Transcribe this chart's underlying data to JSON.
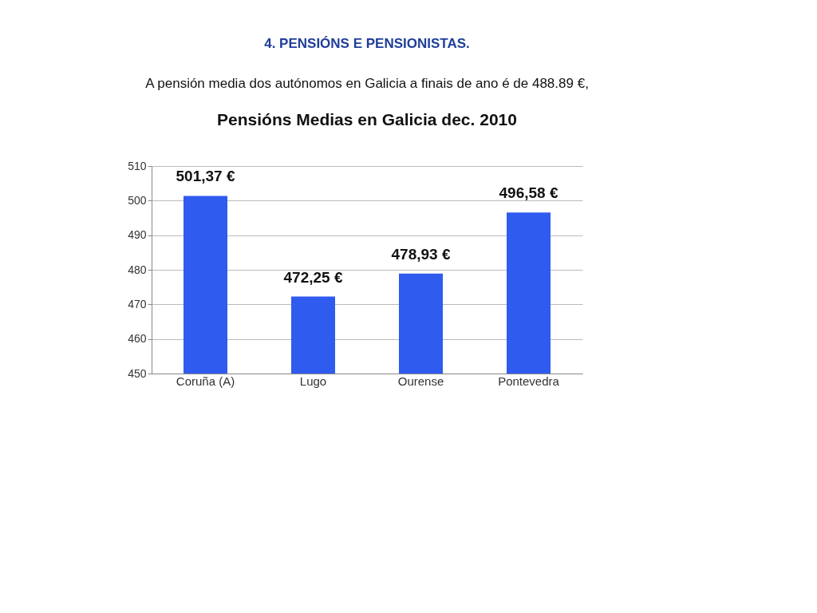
{
  "chart_data": {
    "type": "bar",
    "title": "Pensións Medias en Galicia dec. 2010",
    "annotations": [
      "4. PENSIÓNS E PENSIONISTAS.",
      "A pensión media dos autónomos en Galicia a finais de ano é de 488.89 €,"
    ],
    "categories": [
      "Coruña (A)",
      "Lugo",
      "Ourense",
      "Pontevedra"
    ],
    "values": [
      501.37,
      472.25,
      478.93,
      496.58
    ],
    "value_labels": [
      "501,37 €",
      "472,25 €",
      "478,93 €",
      "496,58 €"
    ],
    "color": "#2f5bef",
    "ylim": [
      450,
      510
    ],
    "yticks": [
      450,
      460,
      470,
      480,
      490,
      500,
      510
    ],
    "grid": "y"
  }
}
